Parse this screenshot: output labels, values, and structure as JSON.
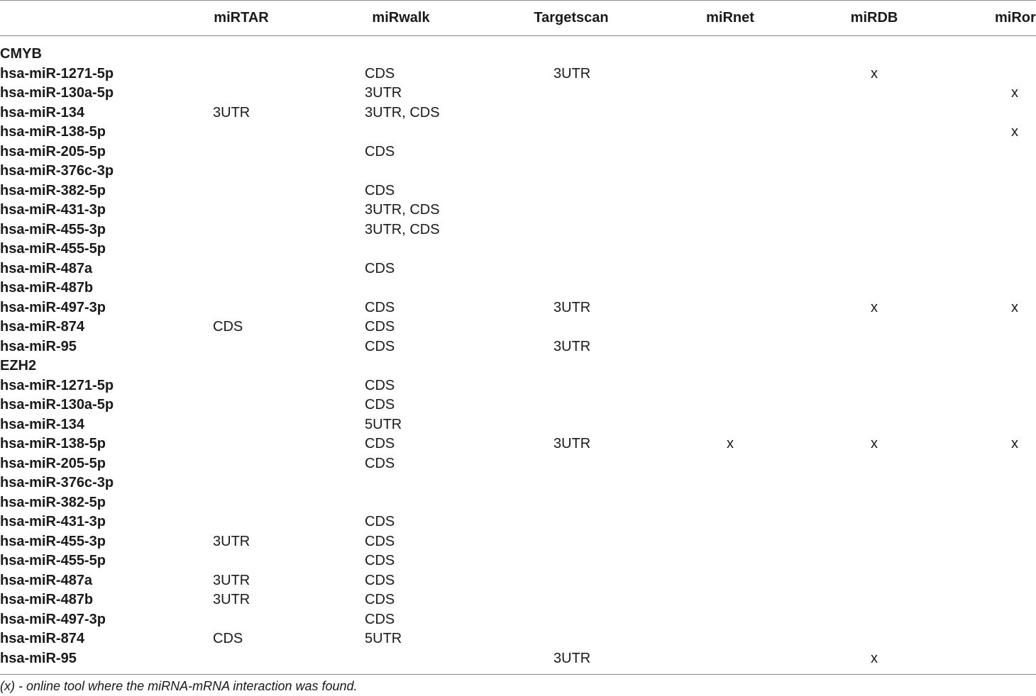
{
  "columns": [
    "",
    "miRTAR",
    "miRwalk",
    "Targetscan",
    "miRnet",
    "miRDB",
    "miRor"
  ],
  "rows": [
    {
      "label": "CMYB",
      "group": true,
      "cells": [
        "",
        "",
        "",
        "",
        "",
        ""
      ]
    },
    {
      "label": "hsa-miR-1271-5p",
      "cells": [
        "",
        "CDS",
        "3UTR",
        "",
        "x",
        ""
      ]
    },
    {
      "label": "hsa-miR-130a-5p",
      "cells": [
        "",
        "3UTR",
        "",
        "",
        "",
        "x"
      ]
    },
    {
      "label": "hsa-miR-134",
      "cells": [
        "3UTR",
        "3UTR, CDS",
        "",
        "",
        "",
        ""
      ]
    },
    {
      "label": "hsa-miR-138-5p",
      "cells": [
        "",
        "",
        "",
        "",
        "",
        "x"
      ]
    },
    {
      "label": "hsa-miR-205-5p",
      "cells": [
        "",
        "CDS",
        "",
        "",
        "",
        ""
      ]
    },
    {
      "label": "hsa-miR-376c-3p",
      "cells": [
        "",
        "",
        "",
        "",
        "",
        ""
      ]
    },
    {
      "label": "hsa-miR-382-5p",
      "cells": [
        "",
        "CDS",
        "",
        "",
        "",
        ""
      ]
    },
    {
      "label": "hsa-miR-431-3p",
      "cells": [
        "",
        "3UTR, CDS",
        "",
        "",
        "",
        ""
      ]
    },
    {
      "label": "hsa-miR-455-3p",
      "cells": [
        "",
        "3UTR, CDS",
        "",
        "",
        "",
        ""
      ]
    },
    {
      "label": "hsa-miR-455-5p",
      "cells": [
        "",
        "",
        "",
        "",
        "",
        ""
      ]
    },
    {
      "label": "hsa-miR-487a",
      "cells": [
        "",
        "CDS",
        "",
        "",
        "",
        ""
      ]
    },
    {
      "label": "hsa-miR-487b",
      "cells": [
        "",
        "",
        "",
        "",
        "",
        ""
      ]
    },
    {
      "label": "hsa-miR-497-3p",
      "cells": [
        "",
        "CDS",
        "3UTR",
        "",
        "x",
        "x"
      ]
    },
    {
      "label": "hsa-miR-874",
      "cells": [
        "CDS",
        "CDS",
        "",
        "",
        "",
        ""
      ]
    },
    {
      "label": "hsa-miR-95",
      "cells": [
        "",
        "CDS",
        "3UTR",
        "",
        "",
        ""
      ]
    },
    {
      "label": "EZH2",
      "group": true,
      "cells": [
        "",
        "",
        "",
        "",
        "",
        ""
      ]
    },
    {
      "label": "hsa-miR-1271-5p",
      "cells": [
        "",
        "CDS",
        "",
        "",
        "",
        ""
      ]
    },
    {
      "label": "hsa-miR-130a-5p",
      "cells": [
        "",
        "CDS",
        "",
        "",
        "",
        ""
      ]
    },
    {
      "label": "hsa-miR-134",
      "cells": [
        "",
        "5UTR",
        "",
        "",
        "",
        ""
      ]
    },
    {
      "label": "hsa-miR-138-5p",
      "cells": [
        "",
        "CDS",
        "3UTR",
        "x",
        "x",
        "x"
      ]
    },
    {
      "label": "hsa-miR-205-5p",
      "cells": [
        "",
        "CDS",
        "",
        "",
        "",
        ""
      ]
    },
    {
      "label": "hsa-miR-376c-3p",
      "cells": [
        "",
        "",
        "",
        "",
        "",
        ""
      ]
    },
    {
      "label": "hsa-miR-382-5p",
      "cells": [
        "",
        "",
        "",
        "",
        "",
        ""
      ]
    },
    {
      "label": "hsa-miR-431-3p",
      "cells": [
        "",
        "CDS",
        "",
        "",
        "",
        ""
      ]
    },
    {
      "label": "hsa-miR-455-3p",
      "cells": [
        "3UTR",
        "CDS",
        "",
        "",
        "",
        ""
      ]
    },
    {
      "label": "hsa-miR-455-5p",
      "cells": [
        "",
        "CDS",
        "",
        "",
        "",
        ""
      ]
    },
    {
      "label": "hsa-miR-487a",
      "cells": [
        "3UTR",
        "CDS",
        "",
        "",
        "",
        ""
      ]
    },
    {
      "label": "hsa-miR-487b",
      "cells": [
        "3UTR",
        "CDS",
        "",
        "",
        "",
        ""
      ]
    },
    {
      "label": "hsa-miR-497-3p",
      "cells": [
        "",
        "CDS",
        "",
        "",
        "",
        ""
      ]
    },
    {
      "label": "hsa-miR-874",
      "cells": [
        "CDS",
        "5UTR",
        "",
        "",
        "",
        ""
      ]
    },
    {
      "label": "hsa-miR-95",
      "cells": [
        "",
        "",
        "3UTR",
        "",
        "x",
        ""
      ]
    }
  ],
  "footnote": "(x) - online tool where the miRNA-mRNA interaction was found."
}
